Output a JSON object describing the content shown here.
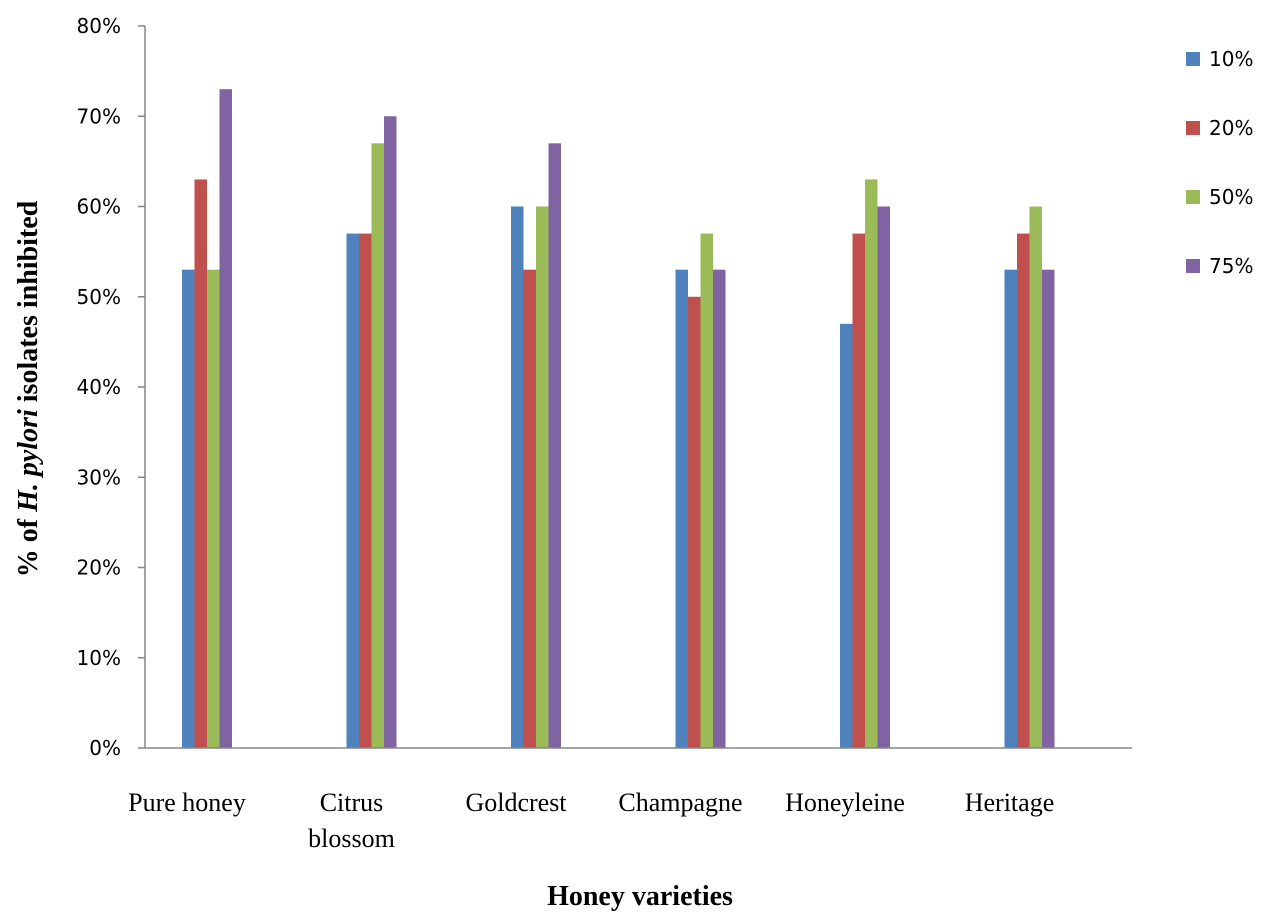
{
  "chart_data": {
    "type": "bar",
    "categories": [
      "Pure honey",
      "Citrus blossom",
      "Goldcrest",
      "Champagne",
      "Honeyleine",
      "Heritage"
    ],
    "category_lines": [
      [
        "Pure honey"
      ],
      [
        "Citrus",
        "blossom"
      ],
      [
        "Goldcrest"
      ],
      [
        "Champagne"
      ],
      [
        "Honeyleine"
      ],
      [
        "Heritage"
      ]
    ],
    "series": [
      {
        "name": "10%",
        "color": "#4F81BD",
        "values": [
          53,
          57,
          60,
          53,
          47,
          53
        ]
      },
      {
        "name": "20%",
        "color": "#C0504D",
        "values": [
          63,
          57,
          53,
          50,
          57,
          57
        ]
      },
      {
        "name": "50%",
        "color": "#9BBB59",
        "values": [
          53,
          67,
          60,
          57,
          63,
          60
        ]
      },
      {
        "name": "75%",
        "color": "#8064A2",
        "values": [
          73,
          70,
          67,
          53,
          60,
          53
        ]
      }
    ],
    "xlabel": "Honey varieties",
    "ylabel_parts": [
      {
        "text": "% of ",
        "italic": false
      },
      {
        "text": "H. pylori",
        "italic": true
      },
      {
        "text": " isolates inhibited",
        "italic": false
      }
    ],
    "ylim": [
      0,
      80
    ],
    "yticks": [
      0,
      10,
      20,
      30,
      40,
      50,
      60,
      70,
      80
    ],
    "ytick_labels": [
      "0%",
      "10%",
      "20%",
      "30%",
      "40%",
      "50%",
      "60%",
      "70%",
      "80%"
    ],
    "grid": false,
    "legend_position": "right"
  }
}
